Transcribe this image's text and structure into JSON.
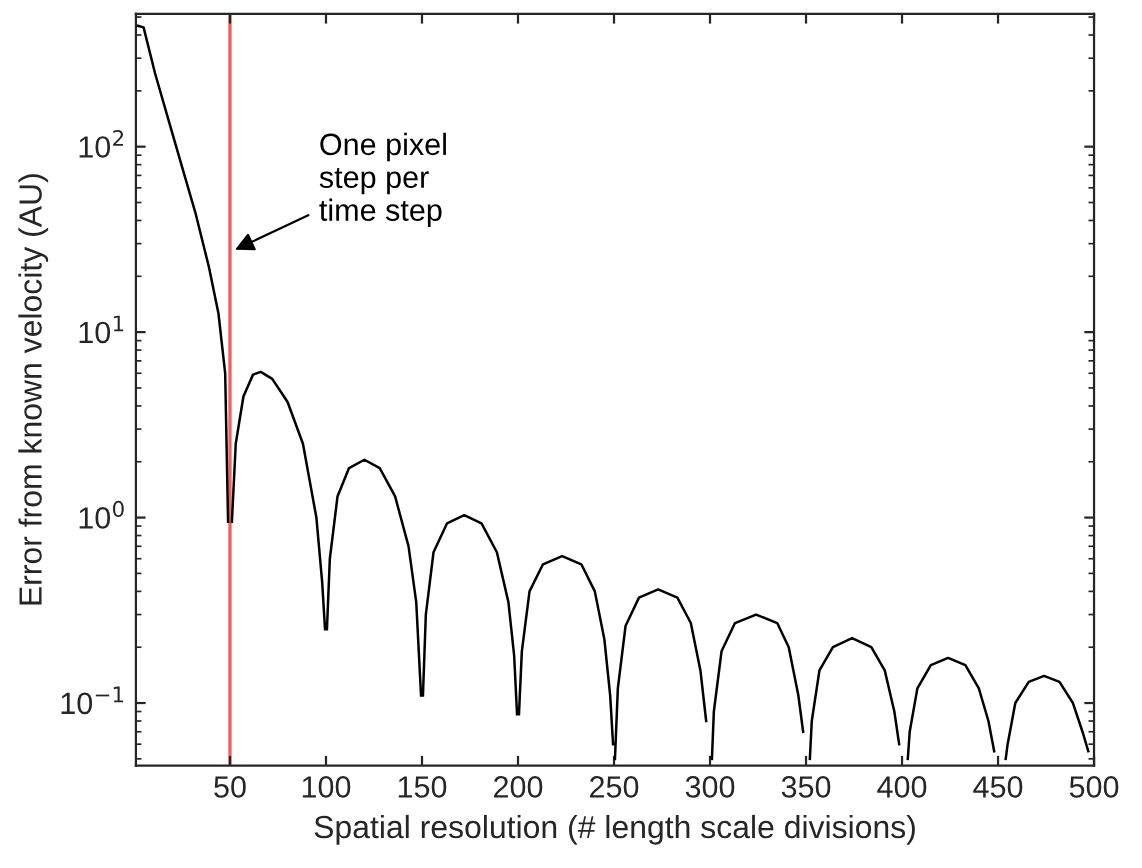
{
  "chart_data": {
    "type": "line",
    "xlabel": "Spatial resolution (# length scale divisions)",
    "ylabel": "Error from known velocity (AU)",
    "log": "y",
    "grid": false,
    "marker": "none",
    "line_style": "solid",
    "xlim": [
      1,
      500
    ],
    "ylim": [
      0.046,
      520
    ],
    "xticks": [
      50,
      100,
      150,
      200,
      250,
      300,
      350,
      400,
      450,
      500
    ],
    "yticks": [
      {
        "value": 0.1,
        "label": "10$^{−1}$"
      },
      {
        "value": 1,
        "label": "10$^{0}$"
      },
      {
        "value": 10,
        "label": "10$^{1}$"
      },
      {
        "value": 100,
        "label": "10$^{2}$"
      }
    ],
    "series": [
      {
        "color": "#000000",
        "x": [
          1.5,
          5,
          11,
          18,
          25,
          32,
          39,
          44,
          47.5,
          49,
          50,
          51,
          53,
          57,
          62,
          66,
          72,
          80,
          88,
          95,
          98,
          99.5,
          100,
          100.5,
          102,
          106,
          112,
          120,
          128,
          136,
          143,
          147,
          149.5,
          150,
          150.5,
          152,
          156,
          163,
          172,
          181,
          189,
          195,
          198,
          199.5,
          200,
          200.5,
          202,
          206,
          213,
          223,
          233,
          240,
          245,
          248,
          249.5,
          250,
          250.5,
          252,
          256,
          263,
          273,
          283,
          290,
          295,
          298,
          300,
          301,
          302,
          306,
          313,
          324,
          335,
          341,
          346,
          348.5,
          350,
          352,
          353,
          357,
          364,
          374,
          384,
          391,
          396,
          398.5,
          400,
          403,
          404,
          408,
          415,
          424,
          433,
          440,
          445,
          448,
          450,
          454,
          455,
          459,
          466,
          474,
          482,
          489,
          494,
          497
        ],
        "values": [
          450,
          440,
          248,
          139,
          78,
          44,
          22.5,
          12.6,
          6,
          0.95,
          null,
          0.95,
          2.5,
          4.5,
          5.9,
          6.1,
          5.6,
          4.2,
          2.5,
          1.0,
          0.45,
          0.25,
          null,
          0.25,
          0.6,
          1.3,
          1.85,
          2.05,
          1.85,
          1.3,
          0.7,
          0.35,
          0.11,
          null,
          0.11,
          0.3,
          0.65,
          0.93,
          1.03,
          0.93,
          0.65,
          0.35,
          0.18,
          0.087,
          null,
          0.087,
          0.19,
          0.4,
          0.56,
          0.62,
          0.56,
          0.4,
          0.22,
          0.11,
          0.06,
          null,
          0.05,
          0.12,
          0.26,
          0.37,
          0.41,
          0.37,
          0.27,
          0.15,
          0.08,
          null,
          0.05,
          0.09,
          0.19,
          0.27,
          0.3,
          0.27,
          0.2,
          0.11,
          0.07,
          null,
          0.05,
          0.08,
          0.15,
          0.2,
          0.224,
          0.2,
          0.15,
          0.09,
          0.06,
          null,
          0.05,
          0.07,
          0.12,
          0.16,
          0.175,
          0.16,
          0.12,
          0.08,
          0.055,
          null,
          0.05,
          0.06,
          0.1,
          0.13,
          0.14,
          0.13,
          0.1,
          0.07,
          0.055
        ]
      }
    ],
    "ref_lines": [
      {
        "axis": "x",
        "value": 50,
        "color": "#f06060"
      }
    ],
    "annotations": [
      {
        "text": "One pixel\nstep per\ntime step",
        "x": 50,
        "y": 27
      }
    ]
  }
}
